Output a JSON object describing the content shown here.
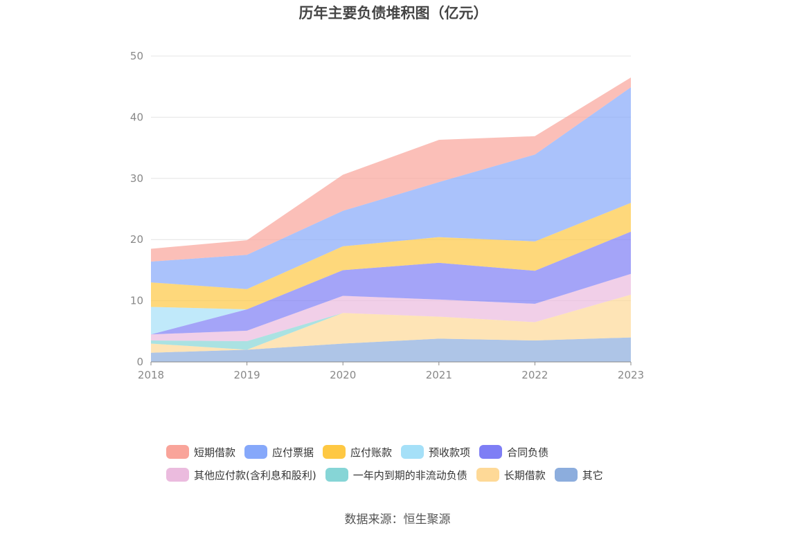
{
  "chart_data": {
    "type": "area",
    "title": "历年主要负债堆积图（亿元）",
    "source": "数据来源：恒生聚源",
    "x": [
      "2018",
      "2019",
      "2020",
      "2021",
      "2022",
      "2023"
    ],
    "ylim": [
      0,
      50
    ],
    "yticks": [
      "0",
      "10",
      "20",
      "30",
      "40",
      "50"
    ],
    "grid": true,
    "legend_position": "bottom",
    "stack_order_bottom_to_top": [
      "其它",
      "长期借款",
      "一年内到期的非流动负债",
      "其他应付款(含利息和股利)",
      "合同负债",
      "预收款项",
      "应付账款",
      "应付票据",
      "短期借款"
    ],
    "series": [
      {
        "name": "短期借款",
        "color": "#f9a49a",
        "values": [
          2.1,
          2.4,
          5.9,
          6.9,
          3.0,
          1.6
        ]
      },
      {
        "name": "应付票据",
        "color": "#86a8fa",
        "values": [
          3.4,
          5.6,
          5.8,
          9.0,
          14.2,
          18.9
        ]
      },
      {
        "name": "应付账款",
        "color": "#fec843",
        "values": [
          4.0,
          3.3,
          3.9,
          4.2,
          4.8,
          4.7
        ]
      },
      {
        "name": "预收款项",
        "color": "#a5e0f8",
        "values": [
          4.5,
          0.0,
          0.0,
          0.0,
          0.0,
          0.0
        ]
      },
      {
        "name": "合同负债",
        "color": "#7e7ef5",
        "values": [
          0.0,
          3.5,
          4.2,
          6.0,
          5.4,
          6.9
        ]
      },
      {
        "name": "其他应付款(含利息和股利)",
        "color": "#ebbbde",
        "values": [
          1.0,
          1.7,
          2.8,
          2.8,
          3.0,
          3.4
        ]
      },
      {
        "name": "一年内到期的非流动负债",
        "color": "#86d5d6",
        "values": [
          0.5,
          1.4,
          0.0,
          0.0,
          0.0,
          0.0
        ]
      },
      {
        "name": "长期借款",
        "color": "#fed997",
        "values": [
          1.5,
          0.0,
          5.0,
          3.6,
          3.0,
          7.0
        ]
      },
      {
        "name": "其它",
        "color": "#8caddd",
        "values": [
          1.5,
          2.0,
          3.0,
          3.8,
          3.5,
          4.0
        ]
      }
    ]
  }
}
